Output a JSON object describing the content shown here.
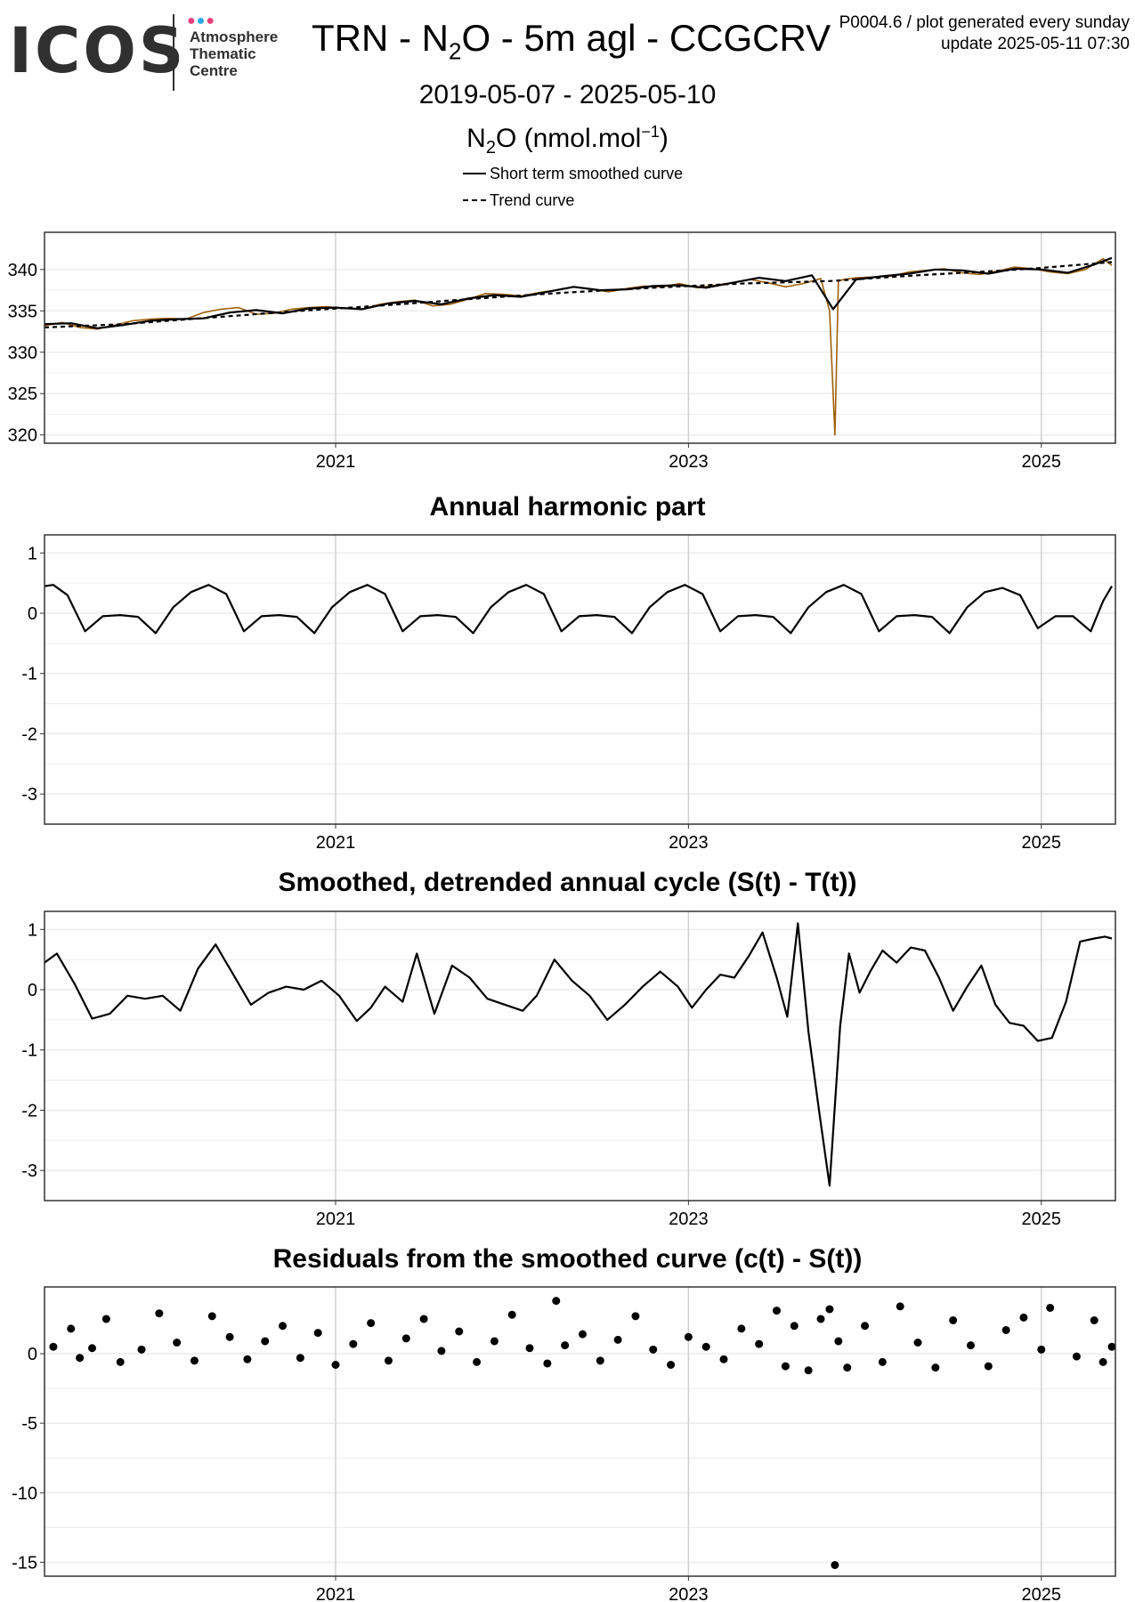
{
  "header": {
    "logo_text": "ICOS",
    "logo_subtitle": [
      "Atmosphere",
      "Thematic",
      "Centre"
    ],
    "logo_dot_colors": [
      "#e8417a",
      "#2aa7e8",
      "#e8417a"
    ],
    "title_prefix": "TRN - N",
    "title_sub": "2",
    "title_suffix": "O - 5m agl - CCGCRV",
    "meta_line1": "P0004.6 / plot generated every sunday",
    "meta_line2": "update  2025-05-11 07:30",
    "date_range": "2019-05-07 - 2025-05-10",
    "unit_prefix": "N",
    "unit_sub": "2",
    "unit_mid": "O (nmol.mol",
    "unit_sup": "−1",
    "unit_suffix": ")"
  },
  "legend": {
    "entries": [
      {
        "label": "Short term smoothed curve",
        "style": "solid"
      },
      {
        "label": "Trend curve",
        "style": "dashed"
      }
    ]
  },
  "colors": {
    "observations": "#a0600a",
    "curves": "#000000",
    "grid_major": "#d0d0d0",
    "grid_minor": "#ececec",
    "frame": "#333333"
  },
  "chart_data": [
    {
      "id": "concentration",
      "type": "line",
      "title": "",
      "xlabel": "",
      "ylabel": "N2O (nmol.mol-1)",
      "xlim": [
        2019.35,
        2025.42
      ],
      "ylim": [
        319.0,
        344.5
      ],
      "xticks": [
        {
          "v": 2021,
          "label": "2021"
        },
        {
          "v": 2023,
          "label": "2023"
        },
        {
          "v": 2025,
          "label": "2025"
        }
      ],
      "yticks": [
        {
          "v": 320,
          "label": "320"
        },
        {
          "v": 325,
          "label": "325"
        },
        {
          "v": 330,
          "label": "330"
        },
        {
          "v": 335,
          "label": "335"
        },
        {
          "v": 340,
          "label": "340"
        }
      ],
      "grid": true,
      "series": [
        {
          "name": "Observations (daily)",
          "style": "observations",
          "color": "#a0600a",
          "x": [
            2019.35,
            2019.45,
            2019.55,
            2019.65,
            2019.75,
            2019.85,
            2019.95,
            2020.05,
            2020.15,
            2020.25,
            2020.35,
            2020.45,
            2020.55,
            2020.65,
            2020.75,
            2020.85,
            2020.95,
            2021.05,
            2021.15,
            2021.25,
            2021.35,
            2021.45,
            2021.55,
            2021.65,
            2021.75,
            2021.85,
            2021.95,
            2022.05,
            2022.15,
            2022.25,
            2022.35,
            2022.45,
            2022.55,
            2022.65,
            2022.75,
            2022.85,
            2022.95,
            2023.05,
            2023.15,
            2023.25,
            2023.35,
            2023.45,
            2023.55,
            2023.65,
            2023.75,
            2023.8,
            2023.83,
            2023.85,
            2023.88,
            2023.95,
            2024.05,
            2024.15,
            2024.25,
            2024.35,
            2024.45,
            2024.55,
            2024.65,
            2024.75,
            2024.85,
            2024.95,
            2025.05,
            2025.15,
            2025.25,
            2025.35,
            2025.4
          ],
          "y": [
            333.2,
            333.6,
            333.0,
            332.8,
            333.3,
            333.8,
            334.0,
            334.1,
            334.0,
            334.8,
            335.2,
            335.4,
            334.6,
            334.7,
            335.2,
            335.4,
            335.5,
            335.3,
            335.2,
            335.8,
            336.1,
            336.3,
            335.6,
            335.8,
            336.4,
            337.1,
            337.0,
            336.8,
            337.2,
            337.5,
            337.9,
            337.6,
            337.3,
            337.7,
            338.0,
            337.9,
            338.3,
            337.8,
            338.1,
            338.4,
            338.8,
            338.4,
            337.9,
            338.3,
            338.9,
            335.0,
            320.0,
            338.6,
            338.8,
            339.0,
            339.1,
            339.2,
            339.7,
            339.9,
            340.1,
            339.6,
            339.4,
            339.8,
            340.3,
            340.1,
            339.7,
            339.5,
            340.0,
            341.3,
            340.5
          ]
        },
        {
          "name": "Short term smoothed curve",
          "style": "solid",
          "color": "#000000",
          "x": [
            2019.35,
            2019.5,
            2019.65,
            2019.8,
            2019.95,
            2020.1,
            2020.25,
            2020.4,
            2020.55,
            2020.7,
            2020.85,
            2021.0,
            2021.15,
            2021.3,
            2021.45,
            2021.6,
            2021.75,
            2021.9,
            2022.05,
            2022.2,
            2022.35,
            2022.5,
            2022.65,
            2022.8,
            2022.95,
            2023.1,
            2023.25,
            2023.4,
            2023.55,
            2023.7,
            2023.82,
            2023.95,
            2024.1,
            2024.25,
            2024.4,
            2024.55,
            2024.7,
            2024.85,
            2025.0,
            2025.15,
            2025.3,
            2025.4
          ],
          "y": [
            333.4,
            333.5,
            332.9,
            333.3,
            333.8,
            334.0,
            334.1,
            334.8,
            335.1,
            334.7,
            335.3,
            335.4,
            335.2,
            335.9,
            336.2,
            335.8,
            336.5,
            336.9,
            336.7,
            337.3,
            337.9,
            337.5,
            337.6,
            338.0,
            338.1,
            337.8,
            338.4,
            339.0,
            338.6,
            339.3,
            335.2,
            338.8,
            339.2,
            339.5,
            340.0,
            339.9,
            339.5,
            340.1,
            340.0,
            339.6,
            340.6,
            341.4
          ]
        },
        {
          "name": "Trend curve",
          "style": "dashed",
          "color": "#000000",
          "x": [
            2019.35,
            2019.8,
            2020.3,
            2020.8,
            2021.3,
            2021.8,
            2022.3,
            2022.8,
            2023.3,
            2023.8,
            2024.3,
            2024.8,
            2025.0,
            2025.4
          ],
          "y": [
            333.0,
            333.4,
            334.2,
            335.0,
            335.7,
            336.5,
            337.2,
            337.8,
            338.3,
            338.6,
            339.3,
            339.9,
            340.2,
            340.9
          ]
        }
      ]
    },
    {
      "id": "harmonic",
      "type": "line",
      "title": "Annual harmonic part",
      "xlabel": "",
      "ylabel": "",
      "xlim": [
        2019.35,
        2025.42
      ],
      "ylim": [
        -3.5,
        1.3
      ],
      "xticks": [
        {
          "v": 2021,
          "label": "2021"
        },
        {
          "v": 2023,
          "label": "2023"
        },
        {
          "v": 2025,
          "label": "2025"
        }
      ],
      "yticks": [
        {
          "v": -3,
          "label": "-3"
        },
        {
          "v": -2,
          "label": "-2"
        },
        {
          "v": -1,
          "label": "-1"
        },
        {
          "v": 0,
          "label": "0"
        },
        {
          "v": 1,
          "label": "1"
        }
      ],
      "grid": true,
      "series": [
        {
          "name": "Annual harmonic part",
          "style": "solid",
          "color": "#000000",
          "x": [
            2019.35,
            2019.4,
            2019.48,
            2019.58,
            2019.68,
            2019.78,
            2019.88,
            2019.98,
            2020.08,
            2020.18,
            2020.28,
            2020.38,
            2020.48,
            2020.58,
            2020.68,
            2020.78,
            2020.88,
            2020.98,
            2021.08,
            2021.18,
            2021.28,
            2021.38,
            2021.48,
            2021.58,
            2021.68,
            2021.78,
            2021.88,
            2021.98,
            2022.08,
            2022.18,
            2022.28,
            2022.38,
            2022.48,
            2022.58,
            2022.68,
            2022.78,
            2022.88,
            2022.98,
            2023.08,
            2023.18,
            2023.28,
            2023.38,
            2023.48,
            2023.58,
            2023.68,
            2023.78,
            2023.88,
            2023.98,
            2024.08,
            2024.18,
            2024.28,
            2024.38,
            2024.48,
            2024.58,
            2024.68,
            2024.78,
            2024.88,
            2024.98,
            2025.08,
            2025.18,
            2025.28,
            2025.35,
            2025.4
          ],
          "y": [
            0.45,
            0.47,
            0.3,
            -0.3,
            -0.05,
            -0.03,
            -0.06,
            -0.33,
            0.1,
            0.35,
            0.47,
            0.32,
            -0.3,
            -0.05,
            -0.03,
            -0.06,
            -0.33,
            0.1,
            0.35,
            0.47,
            0.32,
            -0.3,
            -0.05,
            -0.03,
            -0.06,
            -0.33,
            0.1,
            0.35,
            0.47,
            0.32,
            -0.3,
            -0.05,
            -0.03,
            -0.06,
            -0.33,
            0.1,
            0.35,
            0.47,
            0.32,
            -0.3,
            -0.05,
            -0.03,
            -0.06,
            -0.33,
            0.1,
            0.35,
            0.47,
            0.32,
            -0.3,
            -0.05,
            -0.03,
            -0.06,
            -0.33,
            0.1,
            0.35,
            0.42,
            0.3,
            -0.25,
            -0.05,
            -0.05,
            -0.3,
            0.2,
            0.45
          ]
        }
      ]
    },
    {
      "id": "detrended",
      "type": "line",
      "title": "Smoothed, detrended annual cycle (S(t) - T(t))",
      "xlabel": "",
      "ylabel": "",
      "xlim": [
        2019.35,
        2025.42
      ],
      "ylim": [
        -3.5,
        1.3
      ],
      "xticks": [
        {
          "v": 2021,
          "label": "2021"
        },
        {
          "v": 2023,
          "label": "2023"
        },
        {
          "v": 2025,
          "label": "2025"
        }
      ],
      "yticks": [
        {
          "v": -3,
          "label": "-3"
        },
        {
          "v": -2,
          "label": "-2"
        },
        {
          "v": -1,
          "label": "-1"
        },
        {
          "v": 0,
          "label": "0"
        },
        {
          "v": 1,
          "label": "1"
        }
      ],
      "grid": true,
      "series": [
        {
          "name": "S(t) - T(t)",
          "style": "solid",
          "color": "#000000",
          "x": [
            2019.35,
            2019.42,
            2019.52,
            2019.62,
            2019.72,
            2019.82,
            2019.92,
            2020.02,
            2020.12,
            2020.22,
            2020.32,
            2020.42,
            2020.52,
            2020.62,
            2020.72,
            2020.82,
            2020.92,
            2021.02,
            2021.12,
            2021.2,
            2021.28,
            2021.38,
            2021.46,
            2021.56,
            2021.66,
            2021.76,
            2021.86,
            2021.96,
            2022.06,
            2022.14,
            2022.24,
            2022.34,
            2022.44,
            2022.54,
            2022.64,
            2022.74,
            2022.84,
            2022.94,
            2023.02,
            2023.1,
            2023.18,
            2023.26,
            2023.34,
            2023.42,
            2023.5,
            2023.56,
            2023.62,
            2023.68,
            2023.74,
            2023.8,
            2023.86,
            2023.91,
            2023.97,
            2024.03,
            2024.1,
            2024.18,
            2024.26,
            2024.34,
            2024.42,
            2024.5,
            2024.58,
            2024.66,
            2024.74,
            2024.82,
            2024.9,
            2024.98,
            2025.06,
            2025.14,
            2025.22,
            2025.3,
            2025.36,
            2025.4
          ],
          "y": [
            0.45,
            0.6,
            0.1,
            -0.48,
            -0.4,
            -0.1,
            -0.15,
            -0.1,
            -0.35,
            0.35,
            0.75,
            0.25,
            -0.25,
            -0.05,
            0.05,
            0.0,
            0.15,
            -0.1,
            -0.52,
            -0.3,
            0.05,
            -0.2,
            0.6,
            -0.4,
            0.4,
            0.2,
            -0.15,
            -0.25,
            -0.35,
            -0.1,
            0.5,
            0.15,
            -0.1,
            -0.5,
            -0.25,
            0.05,
            0.3,
            0.05,
            -0.3,
            0.0,
            0.25,
            0.2,
            0.55,
            0.95,
            0.2,
            -0.45,
            1.1,
            -0.7,
            -2.0,
            -3.25,
            -0.6,
            0.6,
            -0.05,
            0.3,
            0.65,
            0.45,
            0.7,
            0.65,
            0.2,
            -0.35,
            0.05,
            0.4,
            -0.25,
            -0.55,
            -0.6,
            -0.85,
            -0.8,
            -0.2,
            0.8,
            0.85,
            0.88,
            0.85
          ]
        }
      ]
    },
    {
      "id": "residuals",
      "type": "scatter",
      "title": "Residuals from the smoothed curve (c(t) - S(t))",
      "xlabel": "",
      "ylabel": "",
      "xlim": [
        2019.35,
        2025.42
      ],
      "ylim": [
        -16.0,
        4.8
      ],
      "xticks": [
        {
          "v": 2021,
          "label": "2021"
        },
        {
          "v": 2023,
          "label": "2023"
        },
        {
          "v": 2025,
          "label": "2025"
        }
      ],
      "yticks": [
        {
          "v": -15,
          "label": "-15"
        },
        {
          "v": -10,
          "label": "-10"
        },
        {
          "v": -5,
          "label": "-5"
        },
        {
          "v": 0,
          "label": "0"
        }
      ],
      "grid": true,
      "series": [
        {
          "name": "Residuals",
          "style": "points",
          "color": "#000000",
          "x": [
            2019.4,
            2019.5,
            2019.55,
            2019.62,
            2019.7,
            2019.78,
            2019.9,
            2020.0,
            2020.1,
            2020.2,
            2020.3,
            2020.4,
            2020.5,
            2020.6,
            2020.7,
            2020.8,
            2020.9,
            2021.0,
            2021.1,
            2021.2,
            2021.3,
            2021.4,
            2021.5,
            2021.6,
            2021.7,
            2021.8,
            2021.9,
            2022.0,
            2022.1,
            2022.2,
            2022.25,
            2022.3,
            2022.4,
            2022.5,
            2022.6,
            2022.7,
            2022.8,
            2022.9,
            2023.0,
            2023.1,
            2023.2,
            2023.3,
            2023.4,
            2023.5,
            2023.55,
            2023.6,
            2023.68,
            2023.75,
            2023.8,
            2023.85,
            2023.9,
            2024.0,
            2024.1,
            2024.2,
            2024.3,
            2024.4,
            2024.5,
            2024.6,
            2024.7,
            2024.8,
            2024.9,
            2025.0,
            2025.05,
            2025.2,
            2025.3,
            2025.35,
            2025.4,
            2023.83
          ],
          "y": [
            0.5,
            1.8,
            -0.3,
            0.4,
            2.5,
            -0.6,
            0.3,
            2.9,
            0.8,
            -0.5,
            2.7,
            1.2,
            -0.4,
            0.9,
            2.0,
            -0.3,
            1.5,
            -0.8,
            0.7,
            2.2,
            -0.5,
            1.1,
            2.5,
            0.2,
            1.6,
            -0.6,
            0.9,
            2.8,
            0.4,
            -0.7,
            3.8,
            0.6,
            1.4,
            -0.5,
            1.0,
            2.7,
            0.3,
            -0.8,
            1.2,
            0.5,
            -0.4,
            1.8,
            0.7,
            3.1,
            -0.9,
            2.0,
            -1.2,
            2.5,
            3.2,
            0.9,
            -1.0,
            2.0,
            -0.6,
            3.4,
            0.8,
            -1.0,
            2.4,
            0.6,
            -0.9,
            1.7,
            2.6,
            0.3,
            3.3,
            -0.2,
            2.4,
            -0.6,
            0.5,
            -15.2
          ]
        }
      ]
    }
  ]
}
